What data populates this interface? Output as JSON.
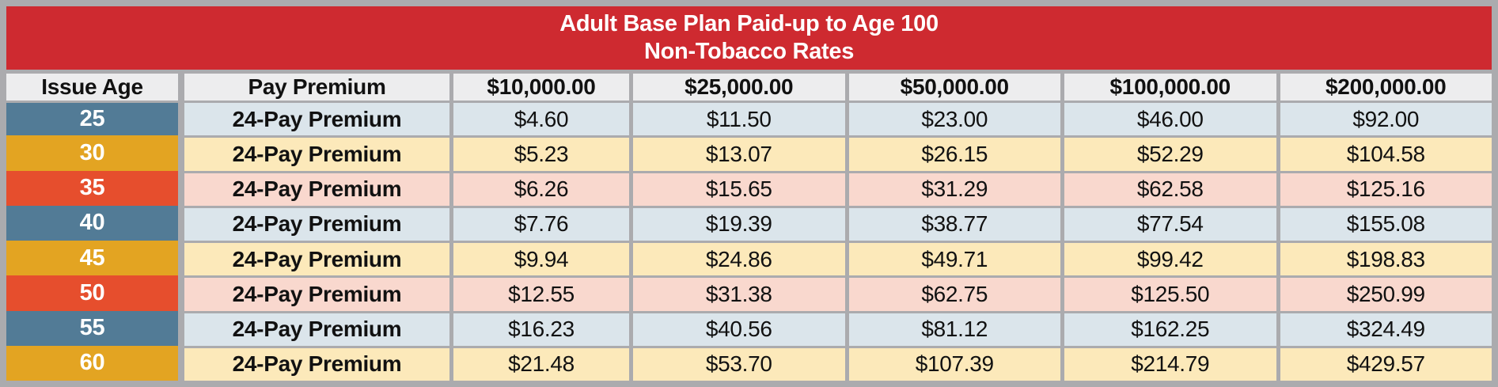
{
  "title": {
    "line1": "Adult Base Plan Paid-up to Age 100",
    "line2": "Non-Tobacco Rates"
  },
  "table": {
    "columns": [
      "Issue Age",
      "Pay Premium",
      "$10,000.00",
      "$25,000.00",
      "$50,000.00",
      "$100,000.00",
      "$200,000.00"
    ],
    "rows": [
      {
        "age": "25",
        "premium": "24-Pay Premium",
        "values": [
          "$4.60",
          "$11.50",
          "$23.00",
          "$46.00",
          "$92.00"
        ],
        "theme": "blue"
      },
      {
        "age": "30",
        "premium": "24-Pay Premium",
        "values": [
          "$5.23",
          "$13.07",
          "$26.15",
          "$52.29",
          "$104.58"
        ],
        "theme": "gold"
      },
      {
        "age": "35",
        "premium": "24-Pay Premium",
        "values": [
          "$6.26",
          "$15.65",
          "$31.29",
          "$62.58",
          "$125.16"
        ],
        "theme": "orange"
      },
      {
        "age": "40",
        "premium": "24-Pay Premium",
        "values": [
          "$7.76",
          "$19.39",
          "$38.77",
          "$77.54",
          "$155.08"
        ],
        "theme": "blue"
      },
      {
        "age": "45",
        "premium": "24-Pay Premium",
        "values": [
          "$9.94",
          "$24.86",
          "$49.71",
          "$99.42",
          "$198.83"
        ],
        "theme": "gold"
      },
      {
        "age": "50",
        "premium": "24-Pay Premium",
        "values": [
          "$12.55",
          "$31.38",
          "$62.75",
          "$125.50",
          "$250.99"
        ],
        "theme": "orange"
      },
      {
        "age": "55",
        "premium": "24-Pay Premium",
        "values": [
          "$16.23",
          "$40.56",
          "$81.12",
          "$162.25",
          "$324.49"
        ],
        "theme": "blue"
      },
      {
        "age": "60",
        "premium": "24-Pay Premium",
        "values": [
          "$21.48",
          "$53.70",
          "$107.39",
          "$214.79",
          "$429.57"
        ],
        "theme": "gold"
      }
    ]
  },
  "colors": {
    "frame_border": "#ababae",
    "title_bg": "#ce2a30",
    "title_text": "#ffffff",
    "header_cell_bg": "#ededee",
    "age_blue": "#527b96",
    "age_gold": "#e3a422",
    "age_orange": "#e64e2d",
    "row_blue": "#dbe5eb",
    "row_cream": "#fce9ba",
    "row_pink": "#f9d8ce",
    "body_text": "#111111"
  }
}
